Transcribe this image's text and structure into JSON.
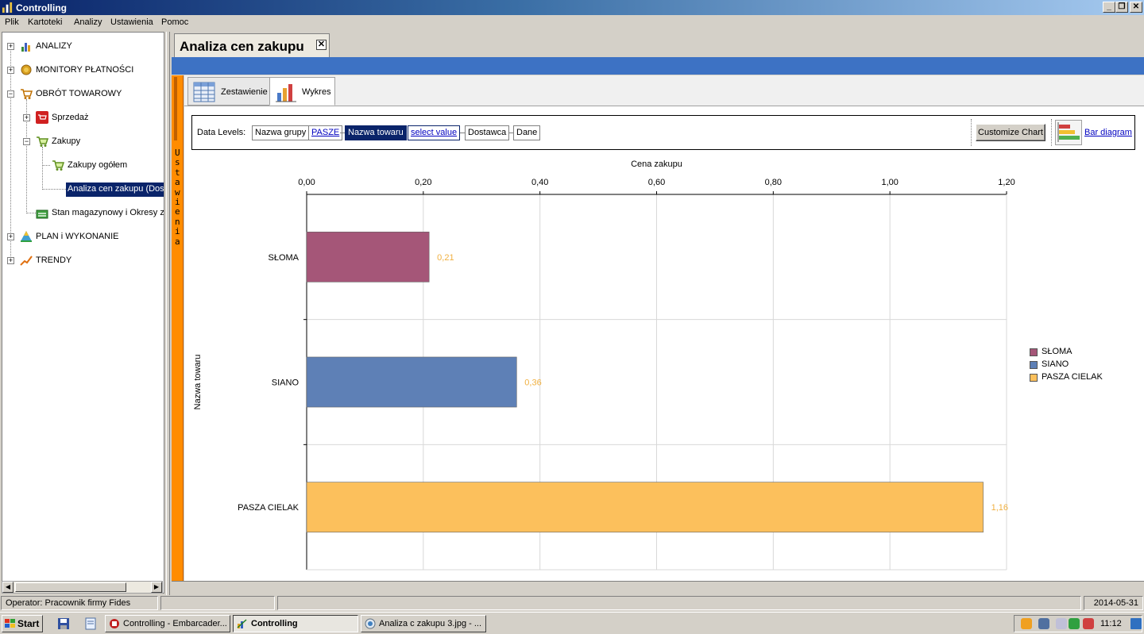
{
  "window": {
    "title": "Controlling"
  },
  "menu": [
    "Plik",
    "Kartoteki",
    "Analizy",
    "Ustawienia",
    "Pomoc"
  ],
  "tree": {
    "items": [
      {
        "label": "ANALIZY",
        "icon": "chart-icon"
      },
      {
        "label": "MONITORY PŁATNOŚCI",
        "icon": "coins-icon"
      },
      {
        "label": "OBRÓT TOWAROWY",
        "icon": "cart-icon"
      },
      {
        "label": "Sprzedaż",
        "icon": "sales-cart-icon"
      },
      {
        "label": "Zakupy",
        "icon": "purchase-cart-icon"
      },
      {
        "label": "Zakupy ogółem",
        "icon": "purchase-cart-icon"
      },
      {
        "label": "Analiza cen zakupu (Dost",
        "icon": "none"
      },
      {
        "label": "Stan magazynowy i Okresy z",
        "icon": "warehouse-icon"
      },
      {
        "label": "PLAN i WYKONANIE",
        "icon": "pyramid-icon"
      },
      {
        "label": "TRENDY",
        "icon": "trend-icon"
      }
    ]
  },
  "document": {
    "tab_title": "Analiza cen zakupu",
    "close_glyph": "✕"
  },
  "side_panel": {
    "label": "Ustawienia"
  },
  "view_tabs": [
    {
      "label": "Zestawienie",
      "icon": "table-icon"
    },
    {
      "label": "Wykres",
      "icon": "bar-chart-icon",
      "active": true
    }
  ],
  "data_levels": {
    "label": "Data Levels:",
    "chips": [
      "Nazwa grupy",
      "PASZE",
      "Nazwa towaru",
      "select value",
      "Dostawca",
      "Dane"
    ],
    "customize_button": "Customize Chart",
    "chart_type_link": "Bar diagram"
  },
  "chart_data": {
    "type": "bar",
    "orientation": "horizontal",
    "title": "Cena zakupu",
    "xlabel": "Cena zakupu",
    "ylabel": "Nazwa towaru",
    "xlim": [
      0,
      1.2
    ],
    "ticks": [
      "0,00",
      "0,20",
      "0,40",
      "0,60",
      "0,80",
      "1,00",
      "1,20"
    ],
    "categories": [
      "SŁOMA",
      "SIANO",
      "PASZA CIELAK "
    ],
    "values": [
      0.21,
      0.36,
      1.16
    ],
    "value_labels": [
      "0,21",
      "0,36",
      "1,16"
    ],
    "colors": [
      "#a55678",
      "#5e80b6",
      "#fcc05c"
    ],
    "legend": [
      "SŁOMA",
      "SIANO",
      "PASZA CIELAK "
    ],
    "legend_position": "right",
    "grid": true
  },
  "status": {
    "operator": "Operator: Pracownik firmy Fides",
    "date": "2014-05-31"
  },
  "taskbar": {
    "start": "Start",
    "tasks": [
      "Controlling - Embarcader...",
      "Controlling",
      "Analiza c zakupu 3.jpg - ..."
    ],
    "clock": "11:12"
  }
}
